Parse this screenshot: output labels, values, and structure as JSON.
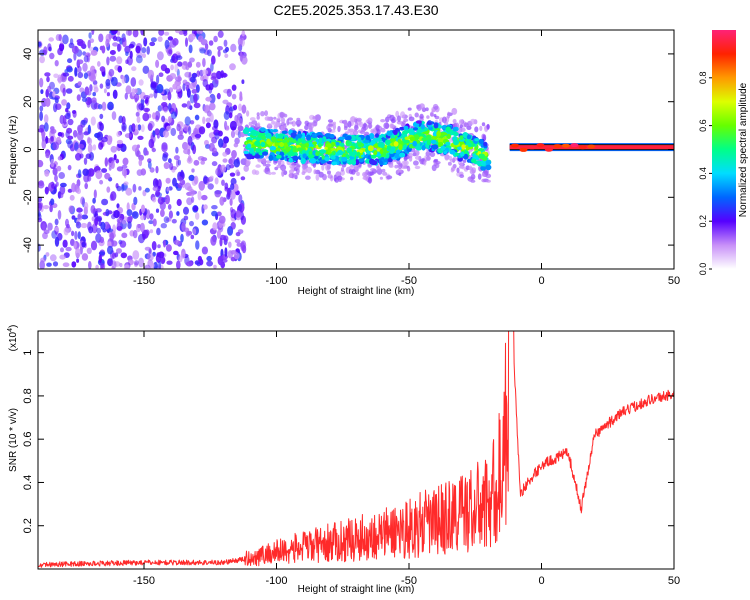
{
  "title": "C2E5.2025.353.17.43.E30",
  "chart_data": [
    {
      "type": "heatmap",
      "title": "C2E5.2025.353.17.43.E30",
      "xlabel": "Height of straight line (km)",
      "ylabel": "Frequency (Hz)",
      "xlim": [
        -190,
        50
      ],
      "ylim": [
        -50,
        50
      ],
      "x_ticks": [
        -150,
        -100,
        -50,
        0,
        50
      ],
      "y_ticks": [
        -40,
        -20,
        0,
        20,
        40
      ],
      "colorbar": {
        "label": "Normalized spectral amplitude",
        "range": [
          0,
          1
        ],
        "ticks": [
          0.0,
          0.2,
          0.4,
          0.6,
          0.8
        ]
      },
      "regions": [
        {
          "name": "broadband noise",
          "x_range": [
            -190,
            -112
          ],
          "freq_range": [
            -50,
            50
          ],
          "amplitude": "low (0.1-0.3)"
        },
        {
          "name": "spectral band",
          "x_range": [
            -112,
            -20
          ],
          "center_freq": [
            [
              -112,
              3
            ],
            [
              -80,
              0
            ],
            [
              -60,
              0
            ],
            [
              -45,
              6
            ],
            [
              -35,
              4
            ],
            [
              -27,
              0
            ],
            [
              -20,
              -3
            ]
          ],
          "amplitude": "medium (0.3-0.7)"
        },
        {
          "name": "narrow line",
          "x_range": [
            -12,
            50
          ],
          "center_freq": 1,
          "amplitude": "high (~1.0)"
        }
      ]
    },
    {
      "type": "line",
      "xlabel": "Height of straight line (km)",
      "ylabel": "SNR (10 * v/v)",
      "y_scale_label": "(x10^4)",
      "y_scale_label_base": "(x10",
      "y_scale_label_exp": "4",
      "y_scale_label_close": ")",
      "xlim": [
        -190,
        50
      ],
      "ylim": [
        0,
        1.1
      ],
      "x_ticks": [
        -150,
        -100,
        -50,
        0,
        50
      ],
      "y_ticks": [
        0.2,
        0.4,
        0.6,
        0.8,
        1.0
      ],
      "series": [
        {
          "name": "SNR",
          "color": "#ff2a2a",
          "x": [
            -190,
            -150,
            -120,
            -110,
            -100,
            -80,
            -60,
            -40,
            -30,
            -20,
            -15,
            -11,
            -8,
            -5,
            0,
            10,
            15,
            20,
            30,
            40,
            50
          ],
          "y": [
            0.02,
            0.03,
            0.03,
            0.05,
            0.08,
            0.12,
            0.16,
            0.22,
            0.26,
            0.3,
            0.45,
            1.1,
            0.35,
            0.4,
            0.48,
            0.54,
            0.28,
            0.62,
            0.72,
            0.78,
            0.81
          ]
        }
      ]
    }
  ]
}
